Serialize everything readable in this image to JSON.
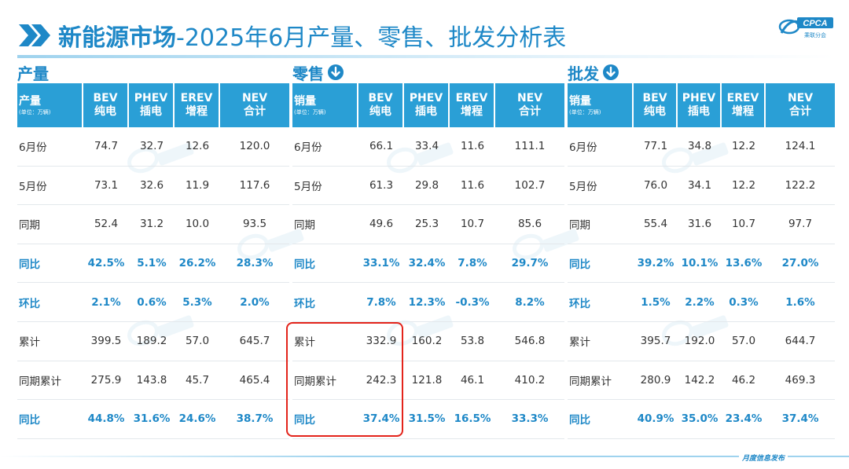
{
  "header": {
    "title_main": "新能源市场",
    "title_rest": "-2025年6月产量、零售、批发分析表",
    "logo_text": "CPCA",
    "logo_subtext": "乘联分会"
  },
  "colors": {
    "accent": "#1E88C7",
    "header_bg": "#2A9FD6",
    "highlight_border": "#E3241B"
  },
  "sections": [
    {
      "title": "产量",
      "has_down_icon": false,
      "corner_label": "产量",
      "corner_unit": "(单位：万辆)",
      "columns": [
        {
          "line1": "BEV",
          "line2": "纯电"
        },
        {
          "line1": "PHEV",
          "line2": "插电"
        },
        {
          "line1": "EREV",
          "line2": "增程"
        },
        {
          "line1": "NEV",
          "line2": "合计"
        }
      ],
      "rows": [
        {
          "label": "6月份",
          "values": [
            "74.7",
            "32.7",
            "12.6",
            "120.0"
          ]
        },
        {
          "label": "5月份",
          "values": [
            "73.1",
            "32.6",
            "11.9",
            "117.6"
          ]
        },
        {
          "label": "同期",
          "values": [
            "52.4",
            "31.2",
            "10.0",
            "93.5"
          ]
        },
        {
          "label": "同比",
          "values": [
            "42.5%",
            "5.1%",
            "26.2%",
            "28.3%"
          ]
        },
        {
          "label": "环比",
          "values": [
            "2.1%",
            "0.6%",
            "5.3%",
            "2.0%"
          ]
        },
        {
          "label": "累计",
          "values": [
            "399.5",
            "189.2",
            "57.0",
            "645.7"
          ]
        },
        {
          "label": "同期累计",
          "values": [
            "275.9",
            "143.8",
            "45.7",
            "465.4"
          ]
        },
        {
          "label": "同比",
          "values": [
            "44.8%",
            "31.6%",
            "24.6%",
            "38.7%"
          ]
        }
      ]
    },
    {
      "title": "零售",
      "has_down_icon": true,
      "corner_label": "销量",
      "corner_unit": "(单位：万辆)",
      "columns": [
        {
          "line1": "BEV",
          "line2": "纯电"
        },
        {
          "line1": "PHEV",
          "line2": "插电"
        },
        {
          "line1": "EREV",
          "line2": "增程"
        },
        {
          "line1": "NEV",
          "line2": "合计"
        }
      ],
      "rows": [
        {
          "label": "6月份",
          "values": [
            "66.1",
            "33.4",
            "11.6",
            "111.1"
          ]
        },
        {
          "label": "5月份",
          "values": [
            "61.3",
            "29.8",
            "11.6",
            "102.7"
          ]
        },
        {
          "label": "同期",
          "values": [
            "49.6",
            "25.3",
            "10.7",
            "85.6"
          ]
        },
        {
          "label": "同比",
          "values": [
            "33.1%",
            "32.4%",
            "7.8%",
            "29.7%"
          ]
        },
        {
          "label": "环比",
          "values": [
            "7.8%",
            "12.3%",
            "-0.3%",
            "8.2%"
          ]
        },
        {
          "label": "累计",
          "values": [
            "332.9",
            "160.2",
            "53.8",
            "546.8"
          ]
        },
        {
          "label": "同期累计",
          "values": [
            "242.3",
            "121.8",
            "46.1",
            "410.2"
          ]
        },
        {
          "label": "同比",
          "values": [
            "37.4%",
            "31.5%",
            "16.5%",
            "33.3%"
          ]
        }
      ]
    },
    {
      "title": "批发",
      "has_down_icon": true,
      "corner_label": "销量",
      "corner_unit": "(单位：万辆)",
      "columns": [
        {
          "line1": "BEV",
          "line2": "纯电"
        },
        {
          "line1": "PHEV",
          "line2": "插电"
        },
        {
          "line1": "EREV",
          "line2": "增程"
        },
        {
          "line1": "NEV",
          "line2": "合计"
        }
      ],
      "rows": [
        {
          "label": "6月份",
          "values": [
            "77.1",
            "34.8",
            "12.2",
            "124.1"
          ]
        },
        {
          "label": "5月份",
          "values": [
            "76.0",
            "34.1",
            "12.2",
            "122.2"
          ]
        },
        {
          "label": "同期",
          "values": [
            "55.4",
            "31.6",
            "10.7",
            "97.7"
          ]
        },
        {
          "label": "同比",
          "values": [
            "39.2%",
            "10.1%",
            "13.6%",
            "27.0%"
          ]
        },
        {
          "label": "环比",
          "values": [
            "1.5%",
            "2.2%",
            "0.3%",
            "1.6%"
          ]
        },
        {
          "label": "累计",
          "values": [
            "395.7",
            "192.0",
            "57.0",
            "644.7"
          ]
        },
        {
          "label": "同期累计",
          "values": [
            "280.9",
            "142.2",
            "46.2",
            "469.3"
          ]
        },
        {
          "label": "同比",
          "values": [
            "40.9%",
            "35.0%",
            "23.4%",
            "37.4%"
          ]
        }
      ]
    }
  ],
  "footer": {
    "text": "月度信息发布"
  }
}
